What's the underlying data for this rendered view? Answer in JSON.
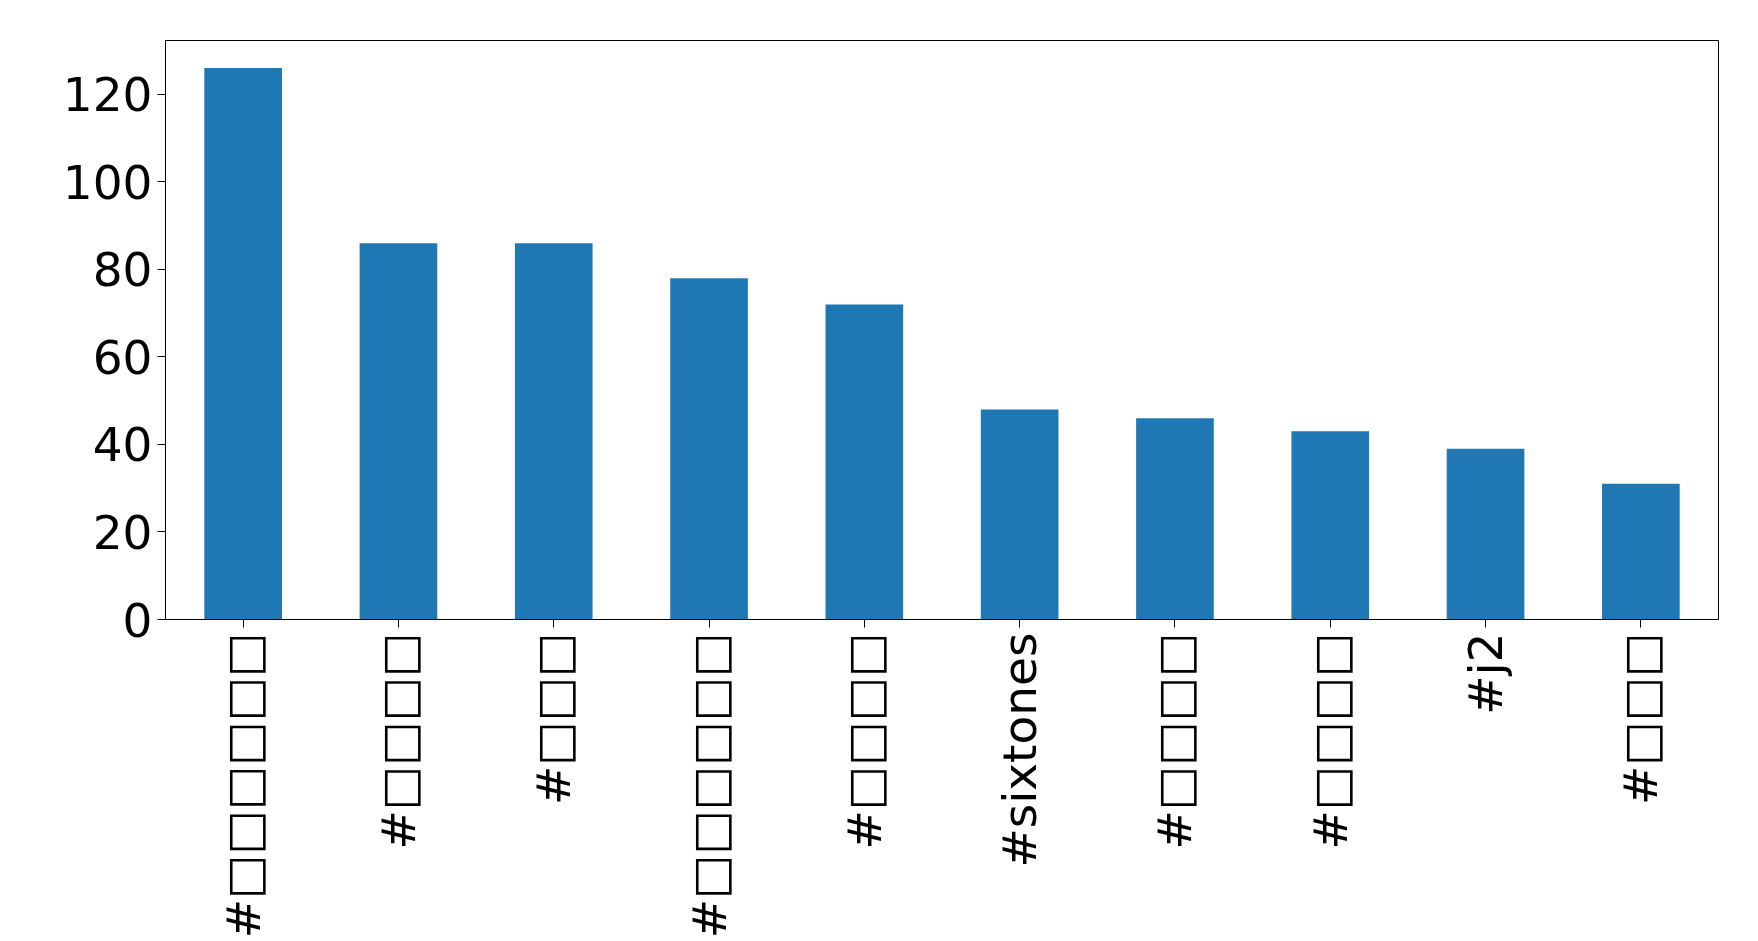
{
  "chart_data": {
    "type": "bar",
    "categories": [
      "#□□□□□□",
      "#□□□□",
      "#□□□",
      "#□□□□□□",
      "#□□□□",
      "#sixtones",
      "#□□□□",
      "#□□□□",
      "#j2",
      "#□□□"
    ],
    "values": [
      126,
      86,
      86,
      78,
      72,
      48,
      46,
      43,
      39,
      31
    ],
    "color": "#1f77b4",
    "ylim": [
      0,
      132.3
    ],
    "yticks": [
      0,
      20,
      40,
      60,
      80,
      100,
      120
    ],
    "grid": false
  }
}
